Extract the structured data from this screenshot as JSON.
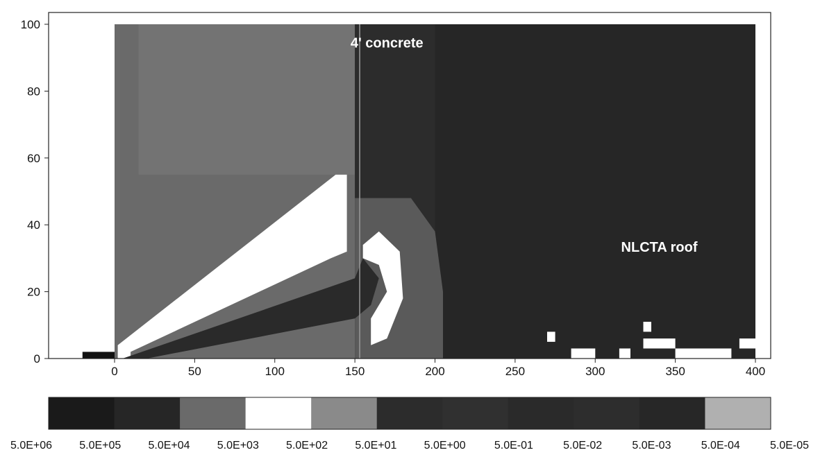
{
  "chart_data": {
    "type": "heatmap",
    "title": "",
    "xlabel": "",
    "ylabel": "",
    "xlim": [
      -40,
      410
    ],
    "ylim": [
      0,
      100
    ],
    "x_ticks": [
      0,
      50,
      100,
      150,
      200,
      250,
      300,
      350,
      400
    ],
    "y_ticks": [
      0,
      20,
      40,
      60,
      80,
      100
    ],
    "annotations": [
      {
        "text": "4' concrete",
        "x": 170,
        "y": 93
      },
      {
        "text": "NLCTA roof",
        "x": 340,
        "y": 32
      }
    ],
    "colorbar": {
      "labels": [
        "5.0E+06",
        "5.0E+05",
        "5.0E+04",
        "5.0E+03",
        "5.0E+02",
        "5.0E+01",
        "5.0E+00",
        "5.0E-01",
        "5.0E-02",
        "5.0E-03",
        "5.0E-04",
        "5.0E-05"
      ],
      "colors": [
        "#1a1a1a",
        "#262626",
        "#6a6a6a",
        "#ffffff",
        "#8a8a8a",
        "#2c2c2c",
        "#303030",
        "#2a2a2a",
        "#2d2d2d",
        "#272727",
        "#252525",
        "#b0b0b0"
      ]
    },
    "regions": [
      {
        "level": "5.0E+04",
        "poly": [
          [
            0,
            100
          ],
          [
            150,
            100
          ],
          [
            150,
            0
          ],
          [
            0,
            0
          ]
        ],
        "color": "#6a6a6a"
      },
      {
        "level": "5.0E+02",
        "poly": [
          [
            15,
            100
          ],
          [
            150,
            100
          ],
          [
            150,
            55
          ],
          [
            15,
            55
          ]
        ],
        "color": "#737373"
      },
      {
        "level": "5.0E-02",
        "poly": [
          [
            150,
            100
          ],
          [
            400,
            100
          ],
          [
            400,
            0
          ],
          [
            150,
            0
          ]
        ],
        "color": "#262626"
      },
      {
        "level": "5.0E-01",
        "poly": [
          [
            150,
            100
          ],
          [
            200,
            100
          ],
          [
            200,
            0
          ],
          [
            150,
            0
          ]
        ],
        "color": "#2c2c2c"
      },
      {
        "level": "5.0E+01",
        "poly": [
          [
            150,
            48
          ],
          [
            185,
            48
          ],
          [
            200,
            38
          ],
          [
            205,
            20
          ],
          [
            205,
            0
          ],
          [
            150,
            0
          ]
        ],
        "color": "#5a5a5a"
      },
      {
        "level": "5.0E+03",
        "poly": [
          [
            2,
            4
          ],
          [
            138,
            55
          ],
          [
            145,
            55
          ],
          [
            145,
            0
          ],
          [
            2,
            0
          ]
        ],
        "color": "#ffffff"
      },
      {
        "level": "5.0E+04",
        "poly": [
          [
            10,
            2
          ],
          [
            135,
            30
          ],
          [
            145,
            32
          ],
          [
            150,
            0
          ],
          [
            80,
            0
          ],
          [
            10,
            0
          ]
        ],
        "color": "#6a6a6a"
      },
      {
        "level": "5.0E+05",
        "poly": [
          [
            5,
            0
          ],
          [
            150,
            24
          ],
          [
            155,
            30
          ],
          [
            165,
            24
          ],
          [
            160,
            16
          ],
          [
            150,
            12
          ],
          [
            20,
            0
          ]
        ],
        "color": "#2a2a2a"
      },
      {
        "level": "5.0E+06",
        "poly": [
          [
            -20,
            2
          ],
          [
            0,
            2
          ],
          [
            0,
            0
          ],
          [
            -20,
            0
          ]
        ],
        "color": "#111111"
      },
      {
        "level": "5.0E+03",
        "poly": [
          [
            155,
            34
          ],
          [
            165,
            38
          ],
          [
            178,
            32
          ],
          [
            180,
            18
          ],
          [
            170,
            6
          ],
          [
            160,
            4
          ],
          [
            160,
            12
          ],
          [
            170,
            20
          ],
          [
            165,
            28
          ],
          [
            155,
            30
          ]
        ],
        "color": "#ffffff"
      },
      {
        "level": "5.0E+03",
        "poly": [
          [
            270,
            8
          ],
          [
            275,
            8
          ],
          [
            275,
            5
          ],
          [
            270,
            5
          ]
        ],
        "color": "#ffffff"
      },
      {
        "level": "5.0E+03",
        "poly": [
          [
            330,
            11
          ],
          [
            335,
            11
          ],
          [
            335,
            8
          ],
          [
            330,
            8
          ]
        ],
        "color": "#ffffff"
      },
      {
        "level": "5.0E+03",
        "poly": [
          [
            330,
            6
          ],
          [
            350,
            6
          ],
          [
            350,
            3
          ],
          [
            330,
            3
          ]
        ],
        "color": "#ffffff"
      },
      {
        "level": "5.0E+03",
        "poly": [
          [
            285,
            3
          ],
          [
            300,
            3
          ],
          [
            300,
            0
          ],
          [
            285,
            0
          ]
        ],
        "color": "#ffffff"
      },
      {
        "level": "5.0E+03",
        "poly": [
          [
            315,
            3
          ],
          [
            322,
            3
          ],
          [
            322,
            0
          ],
          [
            315,
            0
          ]
        ],
        "color": "#ffffff"
      },
      {
        "level": "5.0E+03",
        "poly": [
          [
            350,
            3
          ],
          [
            385,
            3
          ],
          [
            385,
            0
          ],
          [
            350,
            0
          ]
        ],
        "color": "#ffffff"
      },
      {
        "level": "5.0E+03",
        "poly": [
          [
            390,
            6
          ],
          [
            400,
            6
          ],
          [
            400,
            3
          ],
          [
            390,
            3
          ]
        ],
        "color": "#ffffff"
      }
    ],
    "boundaries": [
      {
        "name": "concrete-interface",
        "x": 153
      }
    ]
  }
}
